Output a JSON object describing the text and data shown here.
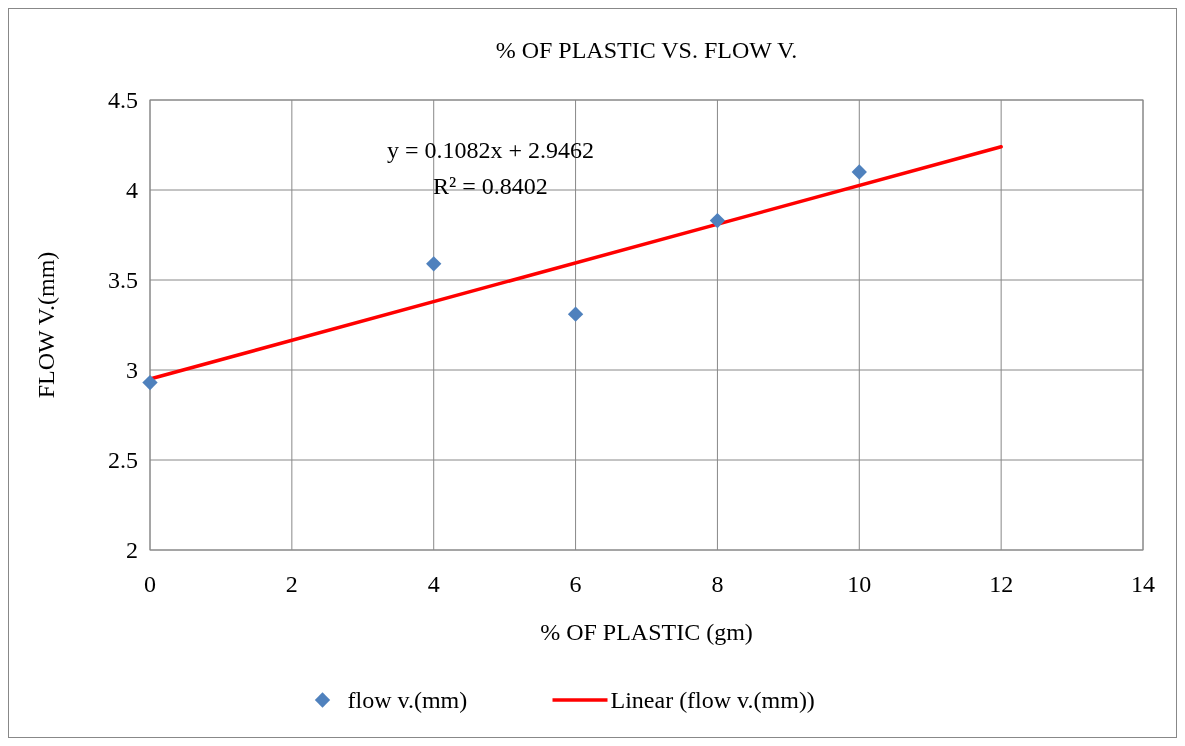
{
  "chart_data": {
    "type": "scatter",
    "title": "% OF PLASTIC VS. FLOW V.",
    "xlabel": "% OF PLASTIC (gm)",
    "ylabel": "FLOW V.(mm)",
    "xlim": [
      0,
      14
    ],
    "xticks": [
      0,
      2,
      4,
      6,
      8,
      10,
      12,
      14
    ],
    "ylim": [
      2,
      4.5
    ],
    "yticks": [
      2,
      2.5,
      3,
      3.5,
      4,
      4.5
    ],
    "grid": true,
    "legend": "bottom",
    "annotations": [
      "y = 0.1082x + 2.9462",
      "R² = 0.8402"
    ],
    "series": [
      {
        "name": "flow v.(mm)",
        "marker": "diamond",
        "color": "#4f81bd",
        "x": [
          0,
          4,
          6,
          8,
          10
        ],
        "values": [
          2.93,
          3.59,
          3.31,
          3.83,
          4.1
        ]
      },
      {
        "name": "Linear (flow v.(mm))",
        "type": "line",
        "color": "#ff0000",
        "line_style": "solid",
        "x": [
          0,
          12
        ],
        "values": [
          2.95,
          4.24
        ]
      }
    ]
  }
}
